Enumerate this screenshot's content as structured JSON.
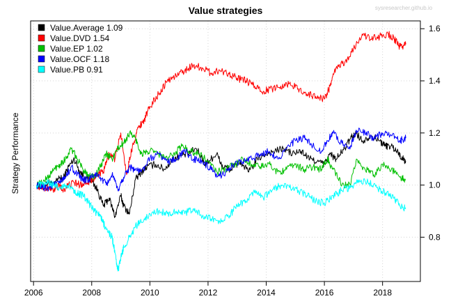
{
  "chart_data": {
    "type": "line",
    "title": "Value strategies",
    "watermark": "sysresearcher.github.io",
    "xlabel": "",
    "ylabel": "Strategy Performance",
    "xlim": [
      2005.9,
      2019.3
    ],
    "ylim": [
      0.63,
      1.63
    ],
    "x_ticks": [
      2006,
      2008,
      2010,
      2012,
      2014,
      2016,
      2018
    ],
    "y_ticks": [
      0.8,
      1.0,
      1.2,
      1.4,
      1.6
    ],
    "y_tick_labels": [
      "0.8",
      "1.0",
      "1.2",
      "1.4",
      "1.6"
    ],
    "y_axis_side": "right",
    "grid": true,
    "legend_position": "top-left",
    "series": [
      {
        "name": "Value.Average 1.09",
        "color": "#000000",
        "x": [
          2006.1,
          2006.3,
          2006.5,
          2006.7,
          2006.9,
          2007.0,
          2007.2,
          2007.4,
          2007.6,
          2007.8,
          2008.0,
          2008.2,
          2008.4,
          2008.6,
          2008.8,
          2009.0,
          2009.1,
          2009.3,
          2009.5,
          2009.7,
          2009.9,
          2010.2,
          2010.5,
          2010.8,
          2011.0,
          2011.3,
          2011.6,
          2011.9,
          2012.1,
          2012.3,
          2012.5,
          2012.8,
          2013.1,
          2013.4,
          2013.7,
          2014.0,
          2014.3,
          2014.6,
          2014.9,
          2015.2,
          2015.5,
          2015.8,
          2016.0,
          2016.2,
          2016.4,
          2016.7,
          2016.9,
          2017.1,
          2017.3,
          2017.6,
          2017.9,
          2018.1,
          2018.3,
          2018.5,
          2018.7,
          2018.8
        ],
        "values": [
          1.0,
          0.99,
          1.01,
          1.0,
          1.03,
          1.02,
          1.07,
          1.1,
          1.05,
          1.03,
          1.02,
          0.98,
          0.92,
          0.95,
          0.88,
          0.96,
          0.92,
          0.89,
          1.02,
          1.05,
          1.07,
          1.08,
          1.06,
          1.1,
          1.11,
          1.12,
          1.14,
          1.08,
          1.1,
          1.12,
          1.07,
          1.06,
          1.09,
          1.05,
          1.1,
          1.12,
          1.13,
          1.14,
          1.12,
          1.13,
          1.1,
          1.09,
          1.08,
          1.12,
          1.1,
          1.14,
          1.18,
          1.2,
          1.17,
          1.19,
          1.17,
          1.15,
          1.15,
          1.13,
          1.1,
          1.09
        ]
      },
      {
        "name": "Value.DVD 1.54",
        "color": "#ff0000",
        "x": [
          2006.1,
          2006.3,
          2006.5,
          2006.7,
          2006.9,
          2007.0,
          2007.2,
          2007.4,
          2007.6,
          2007.8,
          2008.0,
          2008.2,
          2008.4,
          2008.6,
          2008.8,
          2009.0,
          2009.2,
          2009.4,
          2009.6,
          2009.8,
          2010.0,
          2010.3,
          2010.6,
          2010.9,
          2011.2,
          2011.5,
          2011.8,
          2012.1,
          2012.4,
          2012.7,
          2013.0,
          2013.3,
          2013.6,
          2013.9,
          2014.2,
          2014.5,
          2014.8,
          2015.1,
          2015.4,
          2015.7,
          2016.0,
          2016.2,
          2016.4,
          2016.7,
          2017.0,
          2017.3,
          2017.6,
          2017.9,
          2018.2,
          2018.4,
          2018.6,
          2018.8
        ],
        "values": [
          1.0,
          0.99,
          0.99,
          0.98,
          1.0,
          0.98,
          1.0,
          1.01,
          1.0,
          1.01,
          1.02,
          1.04,
          1.05,
          1.12,
          1.1,
          1.2,
          1.04,
          1.15,
          1.22,
          1.25,
          1.3,
          1.35,
          1.4,
          1.42,
          1.44,
          1.46,
          1.45,
          1.43,
          1.44,
          1.43,
          1.41,
          1.4,
          1.38,
          1.36,
          1.37,
          1.38,
          1.39,
          1.37,
          1.35,
          1.34,
          1.33,
          1.38,
          1.45,
          1.47,
          1.52,
          1.58,
          1.56,
          1.57,
          1.58,
          1.56,
          1.53,
          1.54
        ]
      },
      {
        "name": "Value.EP 1.02",
        "color": "#00c000",
        "x": [
          2006.1,
          2006.3,
          2006.5,
          2006.7,
          2006.9,
          2007.1,
          2007.3,
          2007.5,
          2007.7,
          2007.9,
          2008.1,
          2008.3,
          2008.5,
          2008.7,
          2008.9,
          2009.1,
          2009.3,
          2009.5,
          2009.7,
          2010.0,
          2010.3,
          2010.6,
          2010.9,
          2011.1,
          2011.4,
          2011.7,
          2012.0,
          2012.3,
          2012.6,
          2012.9,
          2013.2,
          2013.5,
          2013.8,
          2014.1,
          2014.4,
          2014.7,
          2015.0,
          2015.3,
          2015.6,
          2015.9,
          2016.1,
          2016.3,
          2016.6,
          2016.9,
          2017.1,
          2017.4,
          2017.7,
          2018.0,
          2018.3,
          2018.6,
          2018.8
        ],
        "values": [
          1.0,
          1.01,
          1.03,
          1.06,
          1.08,
          1.1,
          1.14,
          1.1,
          1.06,
          1.04,
          1.03,
          1.07,
          1.12,
          1.1,
          1.14,
          1.16,
          1.2,
          1.18,
          1.12,
          1.13,
          1.12,
          1.1,
          1.13,
          1.15,
          1.13,
          1.12,
          1.09,
          1.05,
          1.06,
          1.08,
          1.1,
          1.08,
          1.07,
          1.08,
          1.05,
          1.06,
          1.08,
          1.06,
          1.07,
          1.06,
          1.1,
          1.06,
          1.0,
          1.0,
          1.1,
          1.06,
          1.04,
          1.08,
          1.06,
          1.03,
          1.02
        ]
      },
      {
        "name": "Value.OCF 1.18",
        "color": "#0000ff",
        "x": [
          2006.1,
          2006.3,
          2006.5,
          2006.7,
          2006.9,
          2007.1,
          2007.3,
          2007.5,
          2007.7,
          2007.9,
          2008.1,
          2008.3,
          2008.5,
          2008.7,
          2008.9,
          2009.1,
          2009.3,
          2009.5,
          2009.7,
          2010.0,
          2010.3,
          2010.6,
          2010.9,
          2011.2,
          2011.5,
          2011.8,
          2012.1,
          2012.3,
          2012.6,
          2012.9,
          2013.2,
          2013.5,
          2013.8,
          2014.1,
          2014.4,
          2014.7,
          2015.0,
          2015.3,
          2015.6,
          2015.9,
          2016.1,
          2016.3,
          2016.6,
          2016.9,
          2017.1,
          2017.4,
          2017.7,
          2018.0,
          2018.3,
          2018.6,
          2018.8
        ],
        "values": [
          1.0,
          0.99,
          0.99,
          1.0,
          1.01,
          1.03,
          1.07,
          1.04,
          1.02,
          1.02,
          1.04,
          1.03,
          1.0,
          1.04,
          0.98,
          1.03,
          1.07,
          1.06,
          1.05,
          1.1,
          1.12,
          1.09,
          1.1,
          1.13,
          1.1,
          1.09,
          1.06,
          1.03,
          1.05,
          1.08,
          1.09,
          1.1,
          1.12,
          1.13,
          1.1,
          1.14,
          1.17,
          1.18,
          1.15,
          1.13,
          1.17,
          1.2,
          1.16,
          1.15,
          1.21,
          1.2,
          1.18,
          1.2,
          1.19,
          1.17,
          1.18
        ]
      },
      {
        "name": "Value.PB 0.91",
        "color": "#00ffff",
        "x": [
          2006.1,
          2006.3,
          2006.5,
          2006.7,
          2006.9,
          2007.1,
          2007.3,
          2007.5,
          2007.7,
          2007.9,
          2008.1,
          2008.3,
          2008.5,
          2008.7,
          2008.8,
          2008.9,
          2009.0,
          2009.1,
          2009.3,
          2009.5,
          2009.7,
          2010.0,
          2010.3,
          2010.6,
          2010.9,
          2011.2,
          2011.5,
          2011.8,
          2012.1,
          2012.4,
          2012.7,
          2013.0,
          2013.3,
          2013.6,
          2013.9,
          2014.2,
          2014.5,
          2014.8,
          2015.1,
          2015.4,
          2015.7,
          2016.0,
          2016.3,
          2016.6,
          2016.9,
          2017.2,
          2017.5,
          2017.8,
          2018.1,
          2018.4,
          2018.6,
          2018.8
        ],
        "values": [
          1.0,
          1.0,
          1.01,
          1.0,
          0.99,
          1.0,
          0.99,
          0.97,
          0.96,
          0.93,
          0.9,
          0.88,
          0.83,
          0.8,
          0.74,
          0.67,
          0.72,
          0.76,
          0.8,
          0.84,
          0.86,
          0.89,
          0.9,
          0.89,
          0.9,
          0.89,
          0.91,
          0.88,
          0.87,
          0.86,
          0.88,
          0.92,
          0.94,
          0.97,
          0.95,
          0.98,
          1.0,
          0.99,
          0.98,
          0.96,
          0.94,
          0.93,
          0.96,
          0.98,
          0.99,
          1.02,
          1.01,
          0.99,
          0.97,
          0.95,
          0.92,
          0.91
        ]
      }
    ]
  }
}
